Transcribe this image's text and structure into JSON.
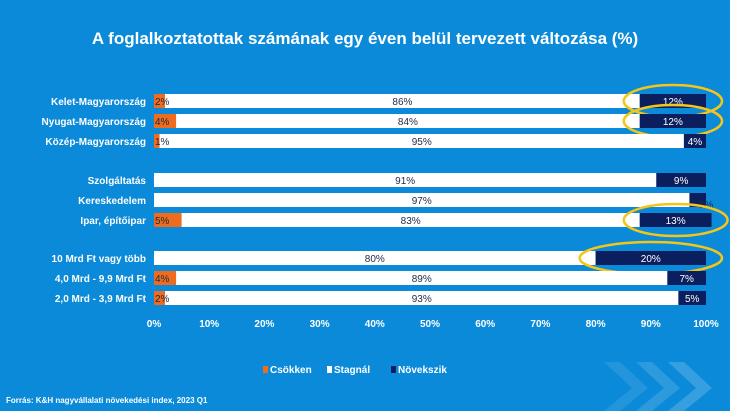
{
  "chart_data": {
    "type": "bar",
    "stacked": true,
    "orientation": "horizontal",
    "title": "A foglalkoztatottak számának egy éven belül tervezett változása (%)",
    "source": "Forrás: K&H nagyvállalati növekedési index, 2023 Q1",
    "categories": [
      "Kelet-Magyarország",
      "Nyugat-Magyarország",
      "Közép-Magyarország",
      "Szolgáltatás",
      "Kereskedelem",
      "Ipar, építőipar",
      "10 Mrd Ft vagy több",
      "4,0 Mrd - 9,9 Mrd Ft",
      "2,0 Mrd - 3,9 Mrd Ft"
    ],
    "groups": [
      [
        0,
        1,
        2
      ],
      [
        3,
        4,
        5
      ],
      [
        6,
        7,
        8
      ]
    ],
    "series": [
      {
        "name": "Csökken",
        "color": "#ef6c1f",
        "values": [
          2,
          4,
          1,
          0,
          0,
          5,
          0,
          4,
          2
        ],
        "labels": [
          "2%",
          "4%",
          "1%",
          "",
          "",
          "5%",
          "",
          "4%",
          "2%"
        ]
      },
      {
        "name": "Stagnál",
        "color": "#ffffff",
        "values": [
          86,
          84,
          95,
          91,
          97,
          83,
          80,
          89,
          93
        ],
        "labels": [
          "86%",
          "84%",
          "95%",
          "91%",
          "97%",
          "83%",
          "80%",
          "89%",
          "93%"
        ]
      },
      {
        "name": "Növekszik",
        "color": "#0b1f5e",
        "values": [
          12,
          12,
          4,
          9,
          3,
          13,
          20,
          7,
          5
        ],
        "labels": [
          "12%",
          "12%",
          "4%",
          "9%",
          "3%",
          "13%",
          "20%",
          "7%",
          "5%"
        ]
      }
    ],
    "highlighted": [
      0,
      1,
      5,
      6
    ],
    "highlight_color": "#f5c518",
    "xlim": [
      0,
      100
    ],
    "xticks": [
      "0%",
      "10%",
      "20%",
      "30%",
      "40%",
      "50%",
      "60%",
      "70%",
      "80%",
      "90%",
      "100%"
    ],
    "legend_position": "bottom",
    "grid": false
  }
}
